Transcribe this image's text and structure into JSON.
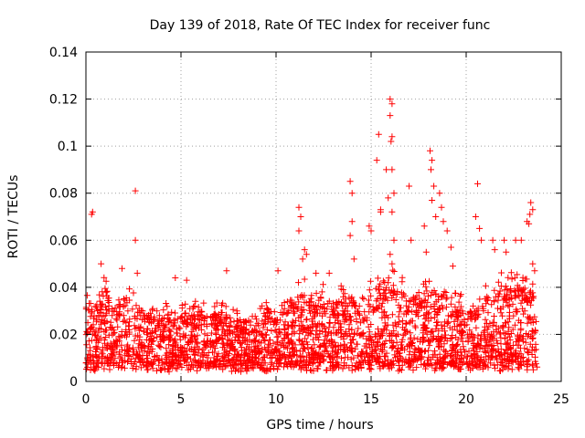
{
  "chart_data": {
    "type": "scatter",
    "title": "Day 139 of 2018, Rate Of TEC Index for receiver func",
    "xlabel": "GPS time / hours",
    "ylabel": "ROTI / TECUs",
    "xlim": [
      0,
      25
    ],
    "ylim": [
      0,
      0.14
    ],
    "xticks": [
      0,
      5,
      10,
      15,
      20,
      25
    ],
    "yticks": [
      0,
      0.02,
      0.04,
      0.06,
      0.08,
      0.1,
      0.12,
      0.14
    ],
    "ytick_labels": [
      "0",
      "0.02",
      "0.04",
      "0.06",
      "0.08",
      "0.1",
      "0.12",
      "0.14"
    ],
    "grid": true,
    "marker": "+",
    "series_color": "#ff0000",
    "data_range": [
      0,
      23.75
    ],
    "envelope": [
      [
        0.0,
        0.034
      ],
      [
        0.5,
        0.03
      ],
      [
        1.0,
        0.04
      ],
      [
        1.5,
        0.03
      ],
      [
        2.0,
        0.036
      ],
      [
        2.5,
        0.034
      ],
      [
        3.0,
        0.03
      ],
      [
        3.5,
        0.028
      ],
      [
        4.0,
        0.028
      ],
      [
        4.5,
        0.03
      ],
      [
        5.0,
        0.028
      ],
      [
        5.5,
        0.03
      ],
      [
        6.0,
        0.03
      ],
      [
        6.5,
        0.028
      ],
      [
        7.0,
        0.03
      ],
      [
        7.5,
        0.028
      ],
      [
        8.0,
        0.026
      ],
      [
        8.5,
        0.026
      ],
      [
        9.0,
        0.026
      ],
      [
        9.5,
        0.032
      ],
      [
        10.0,
        0.028
      ],
      [
        10.5,
        0.034
      ],
      [
        11.0,
        0.036
      ],
      [
        11.5,
        0.038
      ],
      [
        12.0,
        0.034
      ],
      [
        12.5,
        0.036
      ],
      [
        13.0,
        0.034
      ],
      [
        13.5,
        0.036
      ],
      [
        14.0,
        0.036
      ],
      [
        14.5,
        0.036
      ],
      [
        15.0,
        0.038
      ],
      [
        15.5,
        0.042
      ],
      [
        16.0,
        0.044
      ],
      [
        16.5,
        0.04
      ],
      [
        17.0,
        0.036
      ],
      [
        17.5,
        0.036
      ],
      [
        18.0,
        0.04
      ],
      [
        18.5,
        0.038
      ],
      [
        19.0,
        0.036
      ],
      [
        19.5,
        0.034
      ],
      [
        20.0,
        0.03
      ],
      [
        20.5,
        0.03
      ],
      [
        21.0,
        0.036
      ],
      [
        21.5,
        0.04
      ],
      [
        22.0,
        0.042
      ],
      [
        22.5,
        0.04
      ],
      [
        23.0,
        0.04
      ],
      [
        23.5,
        0.038
      ],
      [
        23.75,
        0.032
      ]
    ],
    "spikes": [
      [
        0.3,
        0.071
      ],
      [
        0.35,
        0.072
      ],
      [
        0.8,
        0.05
      ],
      [
        1.9,
        0.048
      ],
      [
        2.6,
        0.081
      ],
      [
        2.6,
        0.06
      ],
      [
        2.7,
        0.046
      ],
      [
        4.7,
        0.044
      ],
      [
        5.3,
        0.043
      ],
      [
        7.4,
        0.047
      ],
      [
        10.1,
        0.047
      ],
      [
        11.2,
        0.074
      ],
      [
        11.3,
        0.07
      ],
      [
        11.2,
        0.064
      ],
      [
        11.5,
        0.056
      ],
      [
        11.4,
        0.052
      ],
      [
        11.6,
        0.054
      ],
      [
        12.1,
        0.046
      ],
      [
        12.8,
        0.046
      ],
      [
        13.9,
        0.085
      ],
      [
        14.0,
        0.08
      ],
      [
        14.0,
        0.068
      ],
      [
        13.9,
        0.062
      ],
      [
        14.1,
        0.052
      ],
      [
        14.9,
        0.066
      ],
      [
        15.0,
        0.064
      ],
      [
        15.3,
        0.094
      ],
      [
        15.4,
        0.105
      ],
      [
        15.5,
        0.073
      ],
      [
        15.5,
        0.072
      ],
      [
        15.8,
        0.09
      ],
      [
        15.9,
        0.078
      ],
      [
        16.0,
        0.12
      ],
      [
        16.1,
        0.118
      ],
      [
        16.0,
        0.113
      ],
      [
        16.1,
        0.104
      ],
      [
        16.05,
        0.102
      ],
      [
        16.1,
        0.09
      ],
      [
        16.2,
        0.08
      ],
      [
        16.1,
        0.072
      ],
      [
        16.2,
        0.06
      ],
      [
        16.0,
        0.054
      ],
      [
        16.1,
        0.05
      ],
      [
        17.0,
        0.083
      ],
      [
        17.1,
        0.06
      ],
      [
        17.8,
        0.066
      ],
      [
        17.9,
        0.055
      ],
      [
        18.1,
        0.098
      ],
      [
        18.2,
        0.094
      ],
      [
        18.15,
        0.09
      ],
      [
        18.3,
        0.083
      ],
      [
        18.2,
        0.077
      ],
      [
        18.4,
        0.07
      ],
      [
        18.6,
        0.08
      ],
      [
        18.7,
        0.074
      ],
      [
        18.8,
        0.068
      ],
      [
        19.0,
        0.064
      ],
      [
        19.2,
        0.057
      ],
      [
        19.3,
        0.049
      ],
      [
        20.5,
        0.07
      ],
      [
        20.6,
        0.084
      ],
      [
        20.7,
        0.065
      ],
      [
        20.8,
        0.06
      ],
      [
        21.4,
        0.06
      ],
      [
        21.5,
        0.056
      ],
      [
        22.0,
        0.06
      ],
      [
        22.1,
        0.055
      ],
      [
        22.6,
        0.06
      ],
      [
        22.9,
        0.06
      ],
      [
        23.2,
        0.068
      ],
      [
        23.3,
        0.067
      ],
      [
        23.4,
        0.076
      ],
      [
        23.5,
        0.073
      ],
      [
        23.35,
        0.071
      ],
      [
        23.5,
        0.05
      ],
      [
        23.6,
        0.047
      ]
    ]
  }
}
